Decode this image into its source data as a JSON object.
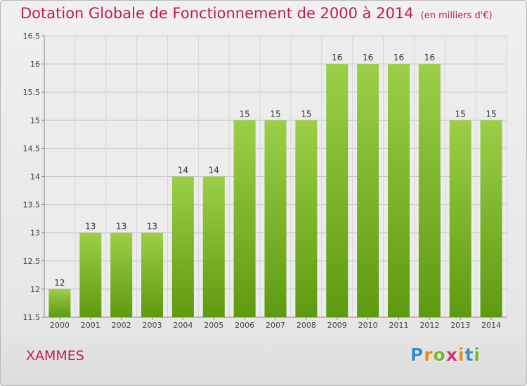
{
  "chart_data": {
    "type": "bar",
    "title": "Dotation Globale de Fonctionnement de 2000 à 2014",
    "subtitle": "(en milliers d'€)",
    "categories": [
      "2000",
      "2001",
      "2002",
      "2003",
      "2004",
      "2005",
      "2006",
      "2007",
      "2008",
      "2009",
      "2010",
      "2011",
      "2012",
      "2013",
      "2014"
    ],
    "values": [
      12,
      13,
      13,
      13,
      14,
      14,
      15,
      15,
      15,
      16,
      16,
      16,
      16,
      15,
      15
    ],
    "data_labels": [
      "12",
      "13",
      "13",
      "13",
      "14",
      "14",
      "15",
      "15",
      "15",
      "16",
      "16",
      "16",
      "16",
      "15",
      "15"
    ],
    "ylim": [
      11.5,
      16.5
    ],
    "yticks": [
      11.5,
      12,
      12.5,
      13,
      13.5,
      14,
      14.5,
      15,
      15.5,
      16,
      16.5
    ],
    "ytick_labels": [
      "11.5",
      "12",
      "12.5",
      "13",
      "13.5",
      "14",
      "14.5",
      "15",
      "15.5",
      "16",
      "16.5"
    ],
    "xlabel": "",
    "ylabel": "",
    "grid": true,
    "legend": "none",
    "bar_color_top": "#9ccf48",
    "bar_color_bottom": "#5e9a10"
  },
  "commune": "XAMMES",
  "logo": {
    "letters": [
      "P",
      "r",
      "o",
      "x",
      "i",
      "t",
      "i"
    ],
    "colors": [
      "#3a8ec8",
      "#e98a1c",
      "#7ab52c",
      "#d62f6e",
      "#e98a1c",
      "#3a8ec8",
      "#7ab52c"
    ]
  }
}
